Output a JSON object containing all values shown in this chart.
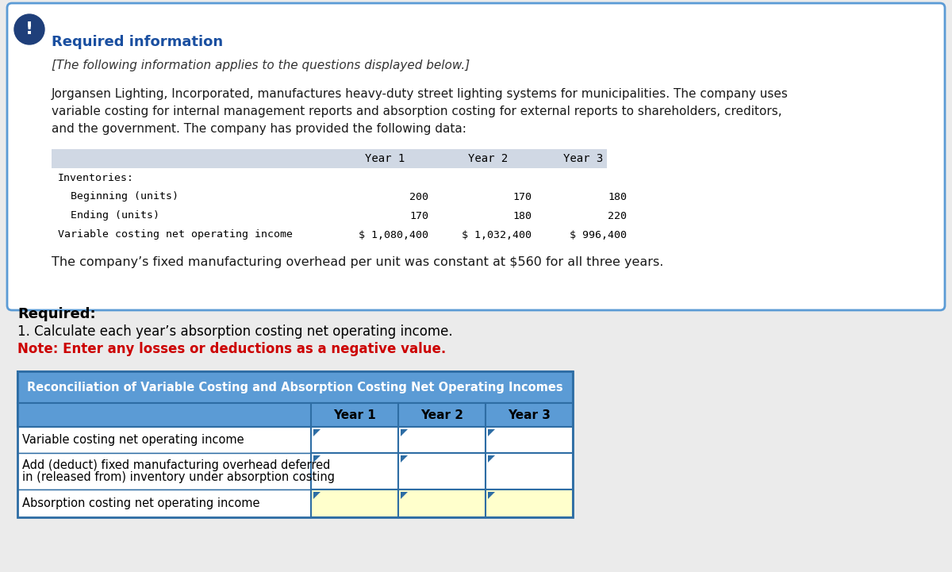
{
  "page_bg": "#ebebeb",
  "card_bg": "#ffffff",
  "card_border": "#5b9bd5",
  "icon_bg": "#1f3f7a",
  "icon_color": "#ffffff",
  "required_info_color": "#1a4fa0",
  "required_info_text": "Required information",
  "italic_text": "[The following information applies to the questions displayed below.]",
  "body_line1": "Jorgansen Lighting, Incorporated, manufactures heavy-duty street lighting systems for municipalities. The company uses",
  "body_line2": "variable costing for internal management reports and absorption costing for external reports to shareholders, creditors,",
  "body_line3": "and the government. The company has provided the following data:",
  "fixed_overhead_text": "The company’s fixed manufacturing overhead per unit was constant at $560 for all three years.",
  "data_table_header_bg": "#d0d8e4",
  "data_table_cols": [
    "Year 1",
    "Year 2",
    "Year 3"
  ],
  "data_table_rows": [
    [
      "Inventories:",
      "",
      "",
      ""
    ],
    [
      "  Beginning (units)",
      "200",
      "170",
      "180"
    ],
    [
      "  Ending (units)",
      "170",
      "180",
      "220"
    ],
    [
      "Variable costing net operating income",
      "$ 1,080,400",
      "$ 1,032,400",
      "$ 996,400"
    ]
  ],
  "required_label": "Required:",
  "required_q": "1. Calculate each year’s absorption costing net operating income.",
  "note_text": "Note: Enter any losses or deductions as a negative value.",
  "note_color": "#cc0000",
  "recon_title": "Reconciliation of Variable Costing and Absorption Costing Net Operating Incomes",
  "recon_title_bg": "#5b9bd5",
  "recon_title_color": "#ffffff",
  "recon_header_bg": "#5b9bd5",
  "recon_cols": [
    "Year 1",
    "Year 2",
    "Year 3"
  ],
  "recon_row0": "Variable costing net operating income",
  "recon_row1a": "Add (deduct) fixed manufacturing overhead deferred",
  "recon_row1b": "in (released from) inventory under absorption costing",
  "recon_row2": "Absorption costing net operating income",
  "recon_input_bg": "#ffffff",
  "recon_last_row_bg": "#ffffcc",
  "recon_border_dark": "#2e6da4",
  "recon_border_light": "#7ab0d8",
  "white": "#ffffff",
  "black": "#000000"
}
